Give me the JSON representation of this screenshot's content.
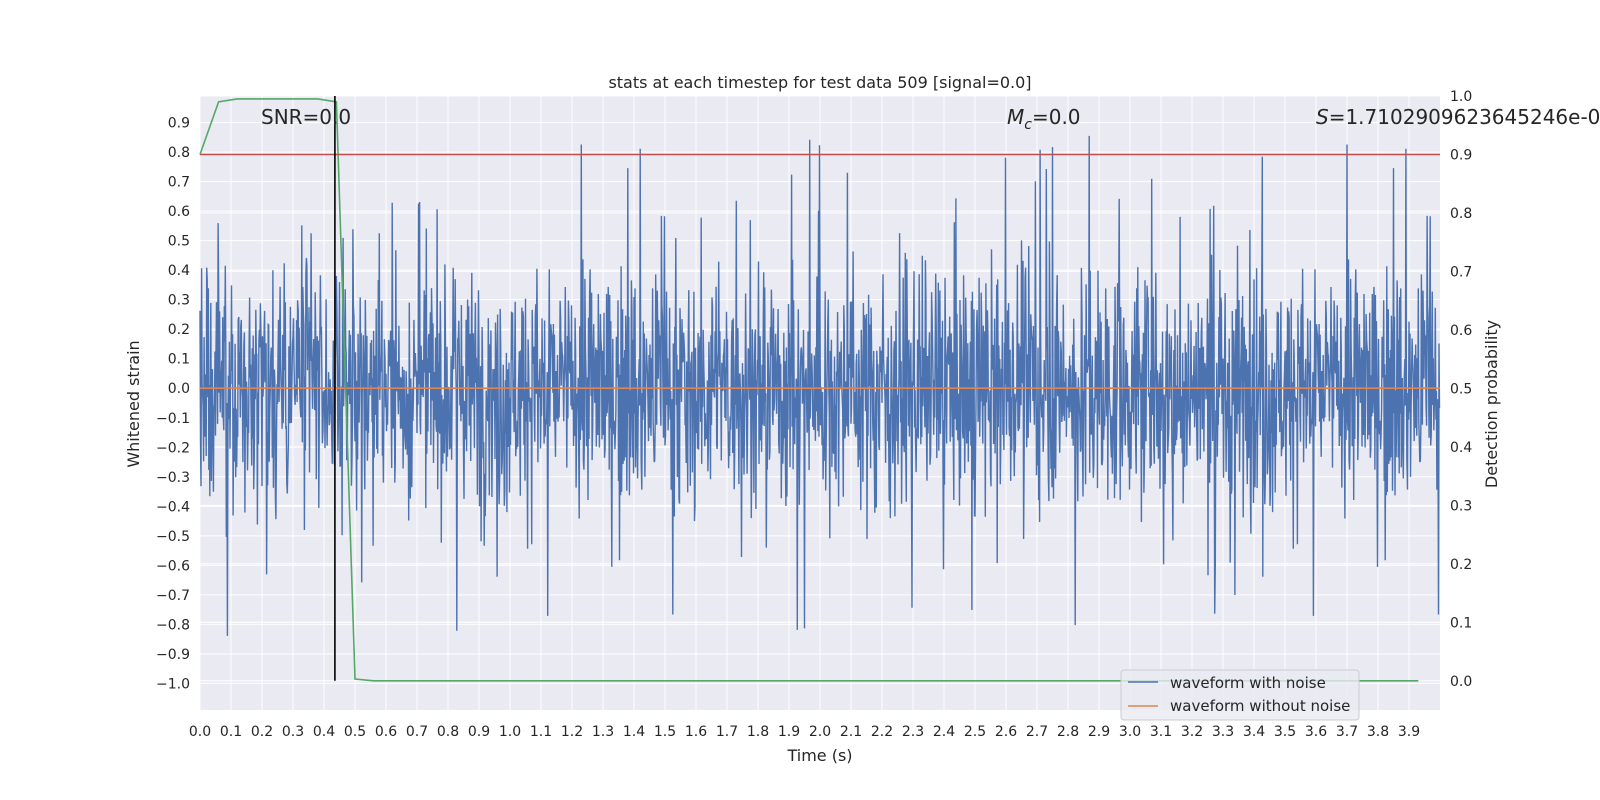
{
  "chart_data": {
    "type": "line",
    "title": "stats at each timestep for test data 509 [signal=0.0]",
    "xlabel": "Time (s)",
    "ylabel_left": "Whitened strain",
    "ylabel_right": "Detection probability",
    "xlim": [
      0.0,
      4.0
    ],
    "ylim_left": [
      -1.09,
      0.99
    ],
    "ylim_right": [
      -0.05,
      1.0
    ],
    "xticks": [
      "0.0",
      "0.1",
      "0.2",
      "0.3",
      "0.4",
      "0.5",
      "0.6",
      "0.7",
      "0.8",
      "0.9",
      "1.0",
      "1.1",
      "1.2",
      "1.3",
      "1.4",
      "1.5",
      "1.6",
      "1.7",
      "1.8",
      "1.9",
      "2.0",
      "2.1",
      "2.2",
      "2.3",
      "2.4",
      "2.5",
      "2.6",
      "2.7",
      "2.8",
      "2.9",
      "3.0",
      "3.1",
      "3.2",
      "3.3",
      "3.4",
      "3.5",
      "3.6",
      "3.7",
      "3.8",
      "3.9"
    ],
    "yticks_left": [
      "0.9",
      "0.8",
      "0.7",
      "0.6",
      "0.5",
      "0.4",
      "0.3",
      "0.2",
      "0.1",
      "0.0",
      "−0.1",
      "−0.2",
      "−0.3",
      "−0.4",
      "−0.5",
      "−0.6",
      "−0.7",
      "−0.8",
      "−0.9",
      "−1.0"
    ],
    "yticks_right": [
      "1.0",
      "0.9",
      "0.8",
      "0.7",
      "0.6",
      "0.5",
      "0.4",
      "0.3",
      "0.2",
      "0.1",
      "0.0"
    ],
    "annotations": {
      "snr": "SNR=0.0",
      "mc_symbol": "M",
      "mc_sub": "c",
      "mc_value": "=0.0",
      "s_symbol": "S",
      "s_value": "=1.7102909623645246e-0"
    },
    "series": [
      {
        "name": "waveform with noise",
        "axis": "left",
        "color": "#4c72b0",
        "note": "dense noise oscillating roughly between -0.85 and 0.9"
      },
      {
        "name": "waveform without noise",
        "axis": "left",
        "color": "#dd8452",
        "x": [
          0.0,
          4.0
        ],
        "y": [
          0.0,
          0.0
        ]
      },
      {
        "axis": "right",
        "color": "#55a868",
        "x": [
          0.0,
          0.06,
          0.12,
          0.2,
          0.3,
          0.38,
          0.44,
          0.5,
          0.56,
          0.7,
          1.0,
          2.0,
          3.0,
          3.93
        ],
        "y": [
          0.9,
          0.99,
          0.995,
          0.995,
          0.995,
          0.995,
          0.99,
          0.003,
          0.0,
          0.0,
          0.0,
          0.0,
          0.0,
          0.0
        ]
      },
      {
        "axis": "right",
        "color": "#c44e52",
        "x": [
          0.0,
          4.0
        ],
        "y": [
          0.9,
          0.9
        ]
      },
      {
        "axis": "right",
        "color": "#000000",
        "x": [
          0.435,
          0.435
        ],
        "y": [
          0.0,
          1.0
        ]
      }
    ],
    "legend": {
      "position": "lower-right",
      "entries": [
        "waveform with noise",
        "waveform without noise"
      ]
    },
    "grid": true,
    "background": "#eaeaf2"
  }
}
